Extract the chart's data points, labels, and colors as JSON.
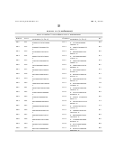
{
  "background": "#ffffff",
  "header_left": "US 2004/0230082 A1",
  "header_right": "Apr. 8, 2010",
  "page_number": "89",
  "table_title": "TABLE 51 (continued)",
  "table_subtitle": "siNA Constructs Inhibiting SDF-1 Expression",
  "rows": [
    {
      "duplex": "D-11",
      "sense": "S-11",
      "sense_seq": [
        "CGAGUUCCCAAGAGACUUUG",
        "TT"
      ],
      "antisense": "AS-11",
      "anti_seq": [
        "5' CAAAGUCUCUUGGG",
        "AUUCGTT 3'"
      ],
      "pos": "123"
    },
    {
      "duplex": "D-12",
      "sense": "S-12",
      "sense_seq": [
        "GACUUUGAAAGCUGUCAAG",
        "TT"
      ],
      "antisense": "AS-12",
      "anti_seq": [
        "5' CUUGACAGCUUUCAAA",
        "GUCTT 3'"
      ],
      "pos": "141"
    },
    {
      "duplex": "D-13",
      "sense": "S-13",
      "sense_seq": [
        "GAAAGCUGUCAAGCAGACA",
        "TT"
      ],
      "antisense": "AS-13",
      "anti_seq": [
        "5' UGUCUGCUUGACAGC",
        "UUUCTT 3'"
      ],
      "pos": "147"
    },
    {
      "duplex": "D-14",
      "sense": "S-14",
      "sense_seq": [
        "GCUGUCAAGCAGACAUUCU",
        "TT"
      ],
      "antisense": "AS-14",
      "anti_seq": [
        "5' AGAAUGUCUGCUUGA",
        "CAGCTT 3'"
      ],
      "pos": "153"
    },
    {
      "duplex": "D-15",
      "sense": "S-15",
      "sense_seq": [
        "CAAGCAGACAUUCUGGAAG",
        "TT"
      ],
      "antisense": "AS-15",
      "anti_seq": [
        "5' CUUCCAGAAUGUCUG",
        "CUUGTT 3'"
      ],
      "pos": "159"
    },
    {
      "duplex": "D-16",
      "sense": "S-16",
      "sense_seq": [
        "CAGACAUUCUGGAAGUCCA",
        "UTT"
      ],
      "antisense": "AS-16",
      "anti_seq": [
        "5' AUGGACUUCCAGAAU",
        "GUCUGTT 3'"
      ],
      "pos": "165"
    },
    {
      "duplex": "D-17",
      "sense": "S-17",
      "sense_seq": [
        "AUUCUGGAAGUCCAUGUAG",
        "TT"
      ],
      "antisense": "AS-17",
      "anti_seq": [
        "5' CUACAUGGACUUCCA",
        "GAAUTT 3'"
      ],
      "pos": "171"
    },
    {
      "duplex": "D-18",
      "sense": "S-18",
      "sense_seq": [
        "UGGAAGUCCAUGUAGCUAA",
        "TT"
      ],
      "antisense": "AS-18",
      "anti_seq": [
        "5' UUAGCUACAUGGACU",
        "UCCATT 3'"
      ],
      "pos": "177"
    },
    {
      "duplex": "D-19",
      "sense": "S-19",
      "sense_seq": [
        "GUCCAUGUAGCUAAGGAAG",
        "TT"
      ],
      "antisense": "AS-19",
      "anti_seq": [
        "5' CUUCCUUAGCUACAU",
        "GGACTT 3'"
      ],
      "pos": "183"
    },
    {
      "duplex": "D-20",
      "sense": "S-20",
      "sense_seq": [
        "CAUGUAGCUAAGGAAGUCUC",
        "TT"
      ],
      "antisense": "AS-20",
      "anti_seq": [
        "5' GAGACUUCCUUAGCU",
        "ACAUGTT 3'"
      ],
      "pos": "189"
    },
    {
      "duplex": "D-21",
      "sense": "S-21",
      "sense_seq": [
        "UAGCUAAGGAAGUCUCAGUG",
        "TT"
      ],
      "antisense": "AS-21",
      "anti_seq": [
        "5' CACUGAGACUUCCUU",
        "AGCUATT 3'"
      ],
      "pos": "195"
    },
    {
      "duplex": "D-22",
      "sense": "S-22",
      "sense_seq": [
        "UAAGGAAGUCUCAGUGUGG",
        "TT"
      ],
      "antisense": "AS-22",
      "anti_seq": [
        "5' CCACACACUGAGACU",
        "UCCUUATT 3'"
      ],
      "pos": "201"
    },
    {
      "duplex": "D-23",
      "sense": "S-23",
      "sense_seq": [
        "GAAGUCUCAGUGUGGAUG",
        "TT"
      ],
      "antisense": "AS-23",
      "anti_seq": [
        "5' CAUCCA CACUGAGAC",
        "UUCTT 3'"
      ],
      "pos": "207"
    },
    {
      "duplex": "D-24",
      "sense": "S-24",
      "sense_seq": [
        "UCUCAGUGUGGAUGCUGAG",
        "TT"
      ],
      "antisense": "AS-24",
      "anti_seq": [
        "5' CUCAGCAUCCACACAC",
        "UGAGTT 3'"
      ],
      "pos": "213"
    },
    {
      "duplex": "D-25",
      "sense": "S-25",
      "sense_seq": [
        "CAGUGUGGAUGCUGAGCUG",
        "TT"
      ],
      "antisense": "AS-25",
      "anti_seq": [
        "5' CAGCUCAGCAUCCAC",
        "ACACTT 3'"
      ],
      "pos": "219"
    },
    {
      "duplex": "D-26",
      "sense": "S-26",
      "sense_seq": [
        "GUGGAUGCUGAGCUGCACU",
        "TT"
      ],
      "antisense": "AS-26",
      "anti_seq": [
        "5' AGUGUGCAGCUCAGC",
        "AUCCACTT 3'"
      ],
      "pos": "225"
    },
    {
      "duplex": "D-27",
      "sense": "S-27",
      "sense_seq": [
        "GAUGCUGAGCUGCACUACA",
        "TT"
      ],
      "antisense": "AS-27",
      "anti_seq": [
        "5' UGUAGUGUGCAGCUC",
        "AGCAUCTT 3'"
      ],
      "pos": "231"
    },
    {
      "duplex": "D-28",
      "sense": "S-28",
      "sense_seq": [
        "GCUGAGCUGCACUACAGUU",
        "TT"
      ],
      "antisense": "AS-28",
      "anti_seq": [
        "5' AACUGUGAGUAGUGU",
        "GCAGCTT 3'"
      ],
      "pos": "237"
    },
    {
      "duplex": "D-29",
      "sense": "S-29",
      "sense_seq": [
        "GAGCUGCACUACAGUUGUC",
        "TT"
      ],
      "antisense": "AS-29",
      "anti_seq": [
        "5' GACAACUGUAGUGUG",
        "CAGCUCTT 3'"
      ],
      "pos": "243"
    },
    {
      "duplex": "D-30",
      "sense": "S-30",
      "sense_seq": [
        "CUGCACUACAGUUGUCUGA",
        "TT"
      ],
      "antisense": "AS-30",
      "anti_seq": [
        "5' UCAGACAACUGUAGU",
        "GUGCAGTT 3'"
      ],
      "pos": "249"
    }
  ]
}
